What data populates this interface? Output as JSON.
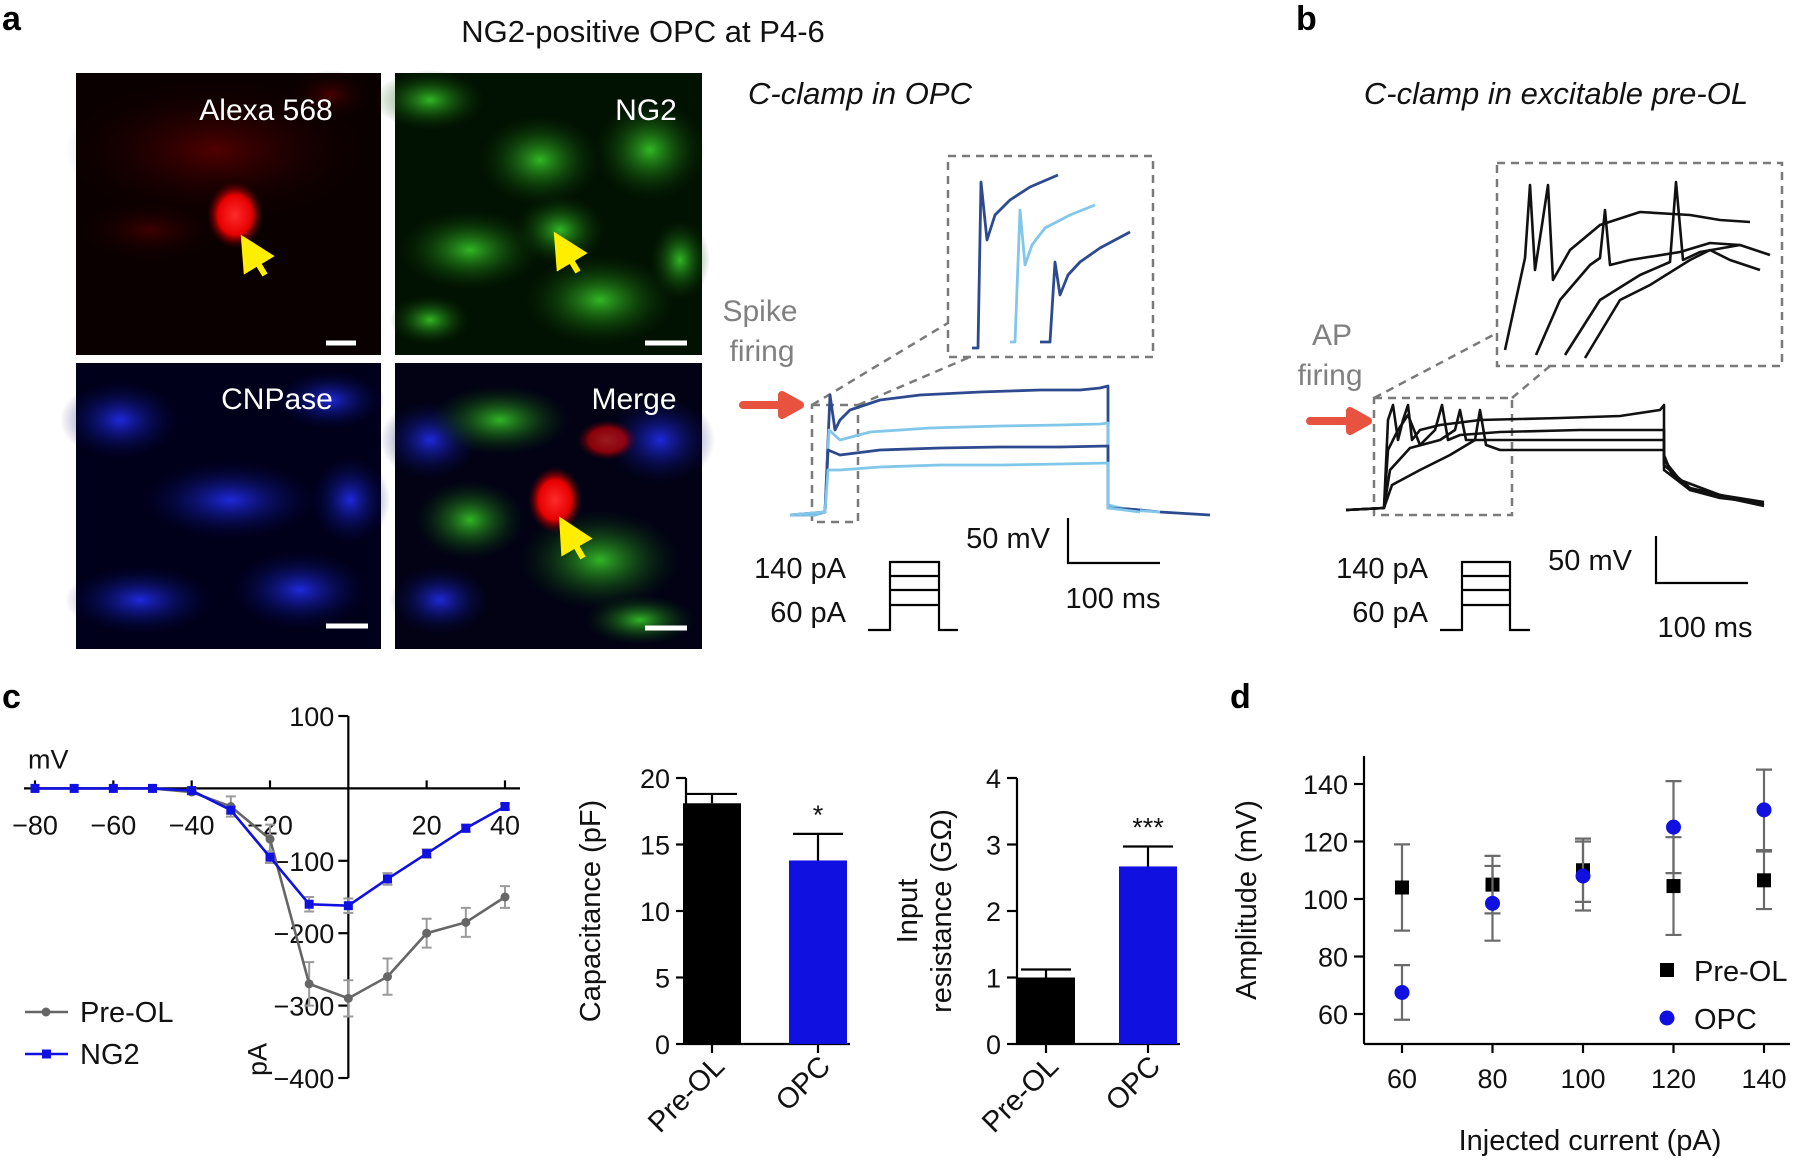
{
  "figure": {
    "panel_a": {
      "letter": "a",
      "title": "NG2-positive OPC at P4-6",
      "images": [
        {
          "label": "Alexa 568",
          "channel": "red"
        },
        {
          "label": "NG2",
          "channel": "green"
        },
        {
          "label": "CNPase",
          "channel": "blue"
        },
        {
          "label": "Merge",
          "channel": "merge"
        }
      ],
      "trace_title": "C-clamp in OPC",
      "annotation": "Spike\nfiring",
      "annotation_line1": "Spike",
      "annotation_line2": "firing",
      "scale_mv": "50 mV",
      "scale_ms": "100 ms",
      "step_high": "140 pA",
      "step_low": "60 pA"
    },
    "panel_b": {
      "letter": "b",
      "trace_title": "C-clamp in excitable pre-OL",
      "annotation_line1": "AP",
      "annotation_line2": "firing",
      "scale_mv": "50 mV",
      "scale_ms": "100 ms",
      "step_high": "140 pA",
      "step_low": "60 pA"
    },
    "panel_c": {
      "letter": "c"
    },
    "panel_d": {
      "letter": "d"
    }
  },
  "colors": {
    "red_arrow": "#e8533f",
    "yellow_arrow": "#ffee00",
    "dark_blue_trace": "#2e4a8f",
    "light_blue_trace": "#82c7ea",
    "ng2_blue": "#1010e0",
    "preol_grey": "#666666",
    "dashed_box": "#7a7a7a"
  },
  "chart_data": [
    {
      "id": "iv",
      "type": "line",
      "title": "",
      "xlabel": "mV",
      "ylabel": "pA",
      "xlim": [
        -80,
        40
      ],
      "ylim": [
        -400,
        100
      ],
      "xticks": [
        -80,
        -60,
        -40,
        -20,
        20,
        40
      ],
      "yticks": [
        100,
        -100,
        -200,
        -300,
        -400
      ],
      "x": [
        -80,
        -70,
        -60,
        -50,
        -40,
        -30,
        -20,
        -10,
        0,
        10,
        20,
        30,
        40
      ],
      "series": [
        {
          "name": "Pre-OL",
          "color": "#666666",
          "marker": "circle",
          "values": [
            0,
            0,
            0,
            0,
            -5,
            -25,
            -70,
            -270,
            -290,
            -260,
            -200,
            -185,
            -150
          ],
          "errors": [
            0,
            0,
            0,
            0,
            3,
            14,
            20,
            30,
            25,
            25,
            20,
            20,
            15
          ]
        },
        {
          "name": "NG2",
          "color": "#1010e0",
          "marker": "square",
          "values": [
            0,
            0,
            0,
            0,
            -3,
            -30,
            -95,
            -160,
            -162,
            -125,
            -90,
            -55,
            -25
          ],
          "errors": [
            0,
            0,
            0,
            0,
            2,
            5,
            8,
            10,
            10,
            8,
            6,
            5,
            4
          ]
        }
      ],
      "legend": [
        "Pre-OL",
        "NG2"
      ]
    },
    {
      "id": "capacitance",
      "type": "bar",
      "categories": [
        "Pre-OL",
        "OPC"
      ],
      "values": [
        18.1,
        13.8
      ],
      "errors": [
        0.7,
        2.0
      ],
      "colors": [
        "#000000",
        "#1010e0"
      ],
      "ylabel": "Capacitance (pF)",
      "ylim": [
        0,
        20
      ],
      "yticks": [
        0,
        5,
        10,
        15,
        20
      ],
      "significance": [
        "",
        "*"
      ]
    },
    {
      "id": "input_resistance",
      "type": "bar",
      "categories": [
        "Pre-OL",
        "OPC"
      ],
      "values": [
        1.0,
        2.67
      ],
      "errors": [
        0.12,
        0.3
      ],
      "colors": [
        "#000000",
        "#1010e0"
      ],
      "ylabel_line1": "Input",
      "ylabel_line2": "resistance (GΩ)",
      "ylim": [
        0,
        4
      ],
      "yticks": [
        0,
        1,
        2,
        3,
        4
      ],
      "significance": [
        "",
        "***"
      ]
    },
    {
      "id": "amplitude",
      "type": "scatter",
      "xlabel": "Injected current (pA)",
      "ylabel": "Amplitude (mV)",
      "x": [
        60,
        80,
        100,
        120,
        140
      ],
      "xticks": [
        60,
        80,
        100,
        120,
        140
      ],
      "yticks": [
        60,
        80,
        100,
        120,
        140
      ],
      "ylim": [
        50,
        150
      ],
      "series": [
        {
          "name": "Pre-OL",
          "color": "#000000",
          "marker": "square",
          "values": [
            104,
            105,
            110,
            104.5,
            106.5
          ],
          "errors": [
            15,
            10,
            11,
            17,
            10
          ]
        },
        {
          "name": "OPC",
          "color": "#1010e0",
          "marker": "circle",
          "values": [
            67.5,
            98.5,
            108,
            125,
            131
          ],
          "errors": [
            9.5,
            13,
            12,
            16,
            14
          ]
        }
      ],
      "legend": [
        "Pre-OL",
        "OPC"
      ]
    }
  ]
}
